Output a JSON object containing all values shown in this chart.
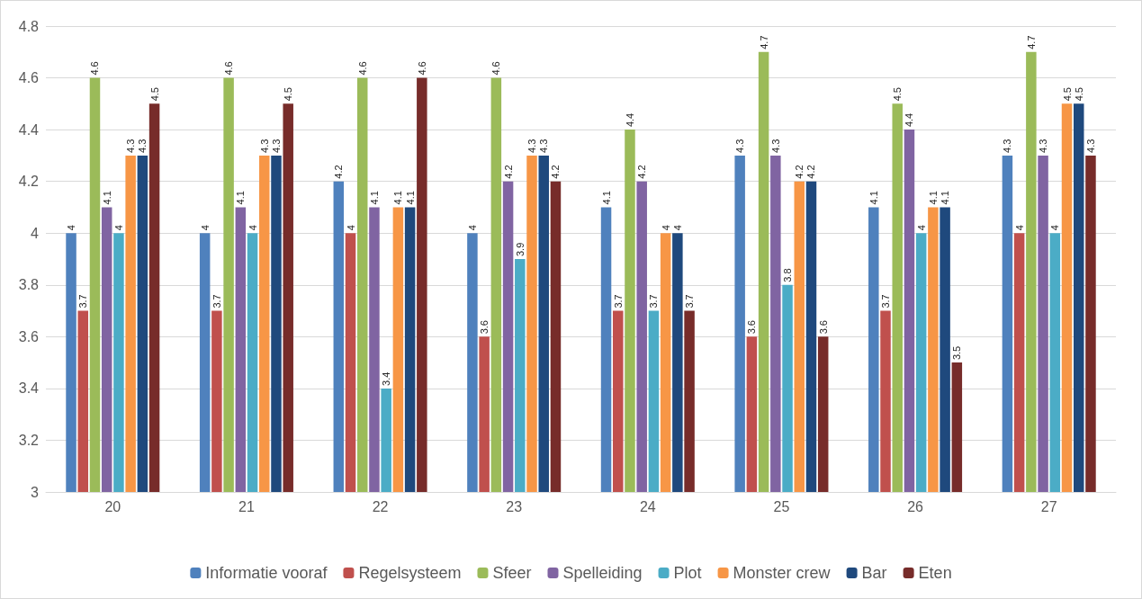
{
  "chart_data": {
    "type": "bar",
    "categories": [
      "20",
      "21",
      "22",
      "23",
      "24",
      "25",
      "26",
      "27"
    ],
    "series": [
      {
        "name": "Informatie vooraf",
        "color": "#4f81bd",
        "values": [
          4,
          4,
          4.2,
          4,
          4.1,
          4.3,
          4.1,
          4.3
        ]
      },
      {
        "name": "Regelsysteem",
        "color": "#c0504d",
        "values": [
          3.7,
          3.7,
          4,
          3.6,
          3.7,
          3.6,
          3.7,
          4
        ]
      },
      {
        "name": "Sfeer",
        "color": "#9bbb59",
        "values": [
          4.6,
          4.6,
          4.6,
          4.6,
          4.4,
          4.7,
          4.5,
          4.7
        ]
      },
      {
        "name": "Spelleiding",
        "color": "#8064a2",
        "values": [
          4.1,
          4.1,
          4.1,
          4.2,
          4.2,
          4.3,
          4.4,
          4.3
        ]
      },
      {
        "name": "Plot",
        "color": "#4bacc6",
        "values": [
          4,
          4,
          3.4,
          3.9,
          3.7,
          3.8,
          4,
          4
        ]
      },
      {
        "name": "Monster crew",
        "color": "#f79646",
        "values": [
          4.3,
          4.3,
          4.1,
          4.3,
          4,
          4.2,
          4.1,
          4.5
        ]
      },
      {
        "name": "Bar",
        "color": "#1f497d",
        "values": [
          4.3,
          4.3,
          4.1,
          4.3,
          4,
          4.2,
          4.1,
          4.5
        ]
      },
      {
        "name": "Eten",
        "color": "#772c2a",
        "values": [
          4.5,
          4.5,
          4.6,
          4.2,
          3.7,
          3.6,
          3.5,
          4.3
        ]
      }
    ],
    "ylim": [
      3,
      4.8
    ],
    "yticks": [
      3,
      3.2,
      3.4,
      3.6,
      3.8,
      4,
      4.2,
      4.4,
      4.6,
      4.8
    ],
    "grid": "y",
    "legend": "bottom",
    "data_labels": true
  }
}
